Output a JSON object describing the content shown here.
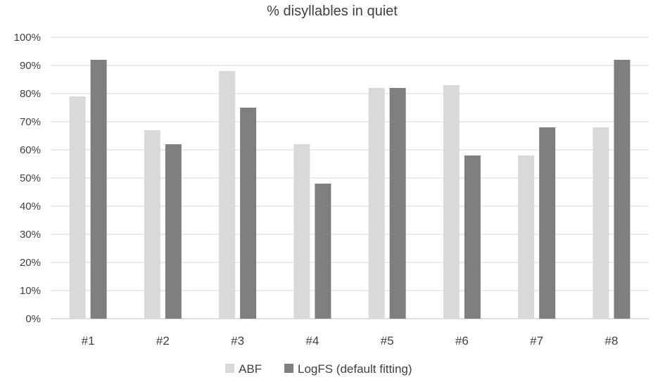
{
  "chart_data": {
    "type": "bar",
    "title": "% disyllables in quiet",
    "xlabel": "",
    "ylabel": "",
    "categories": [
      "#1",
      "#2",
      "#3",
      "#4",
      "#5",
      "#6",
      "#7",
      "#8"
    ],
    "series": [
      {
        "name": "ABF",
        "color": "#d9d9d9",
        "values": [
          79,
          67,
          88,
          62,
          82,
          83,
          58,
          68
        ]
      },
      {
        "name": "LogFS (default fitting)",
        "color": "#7f7f7f",
        "values": [
          92,
          62,
          75,
          48,
          82,
          58,
          68,
          92
        ]
      }
    ],
    "ylim": [
      0,
      100
    ],
    "yticks": [
      "0%",
      "10%",
      "20%",
      "30%",
      "40%",
      "50%",
      "60%",
      "70%",
      "80%",
      "90%",
      "100%"
    ],
    "grid": true,
    "legend_position": "bottom"
  }
}
